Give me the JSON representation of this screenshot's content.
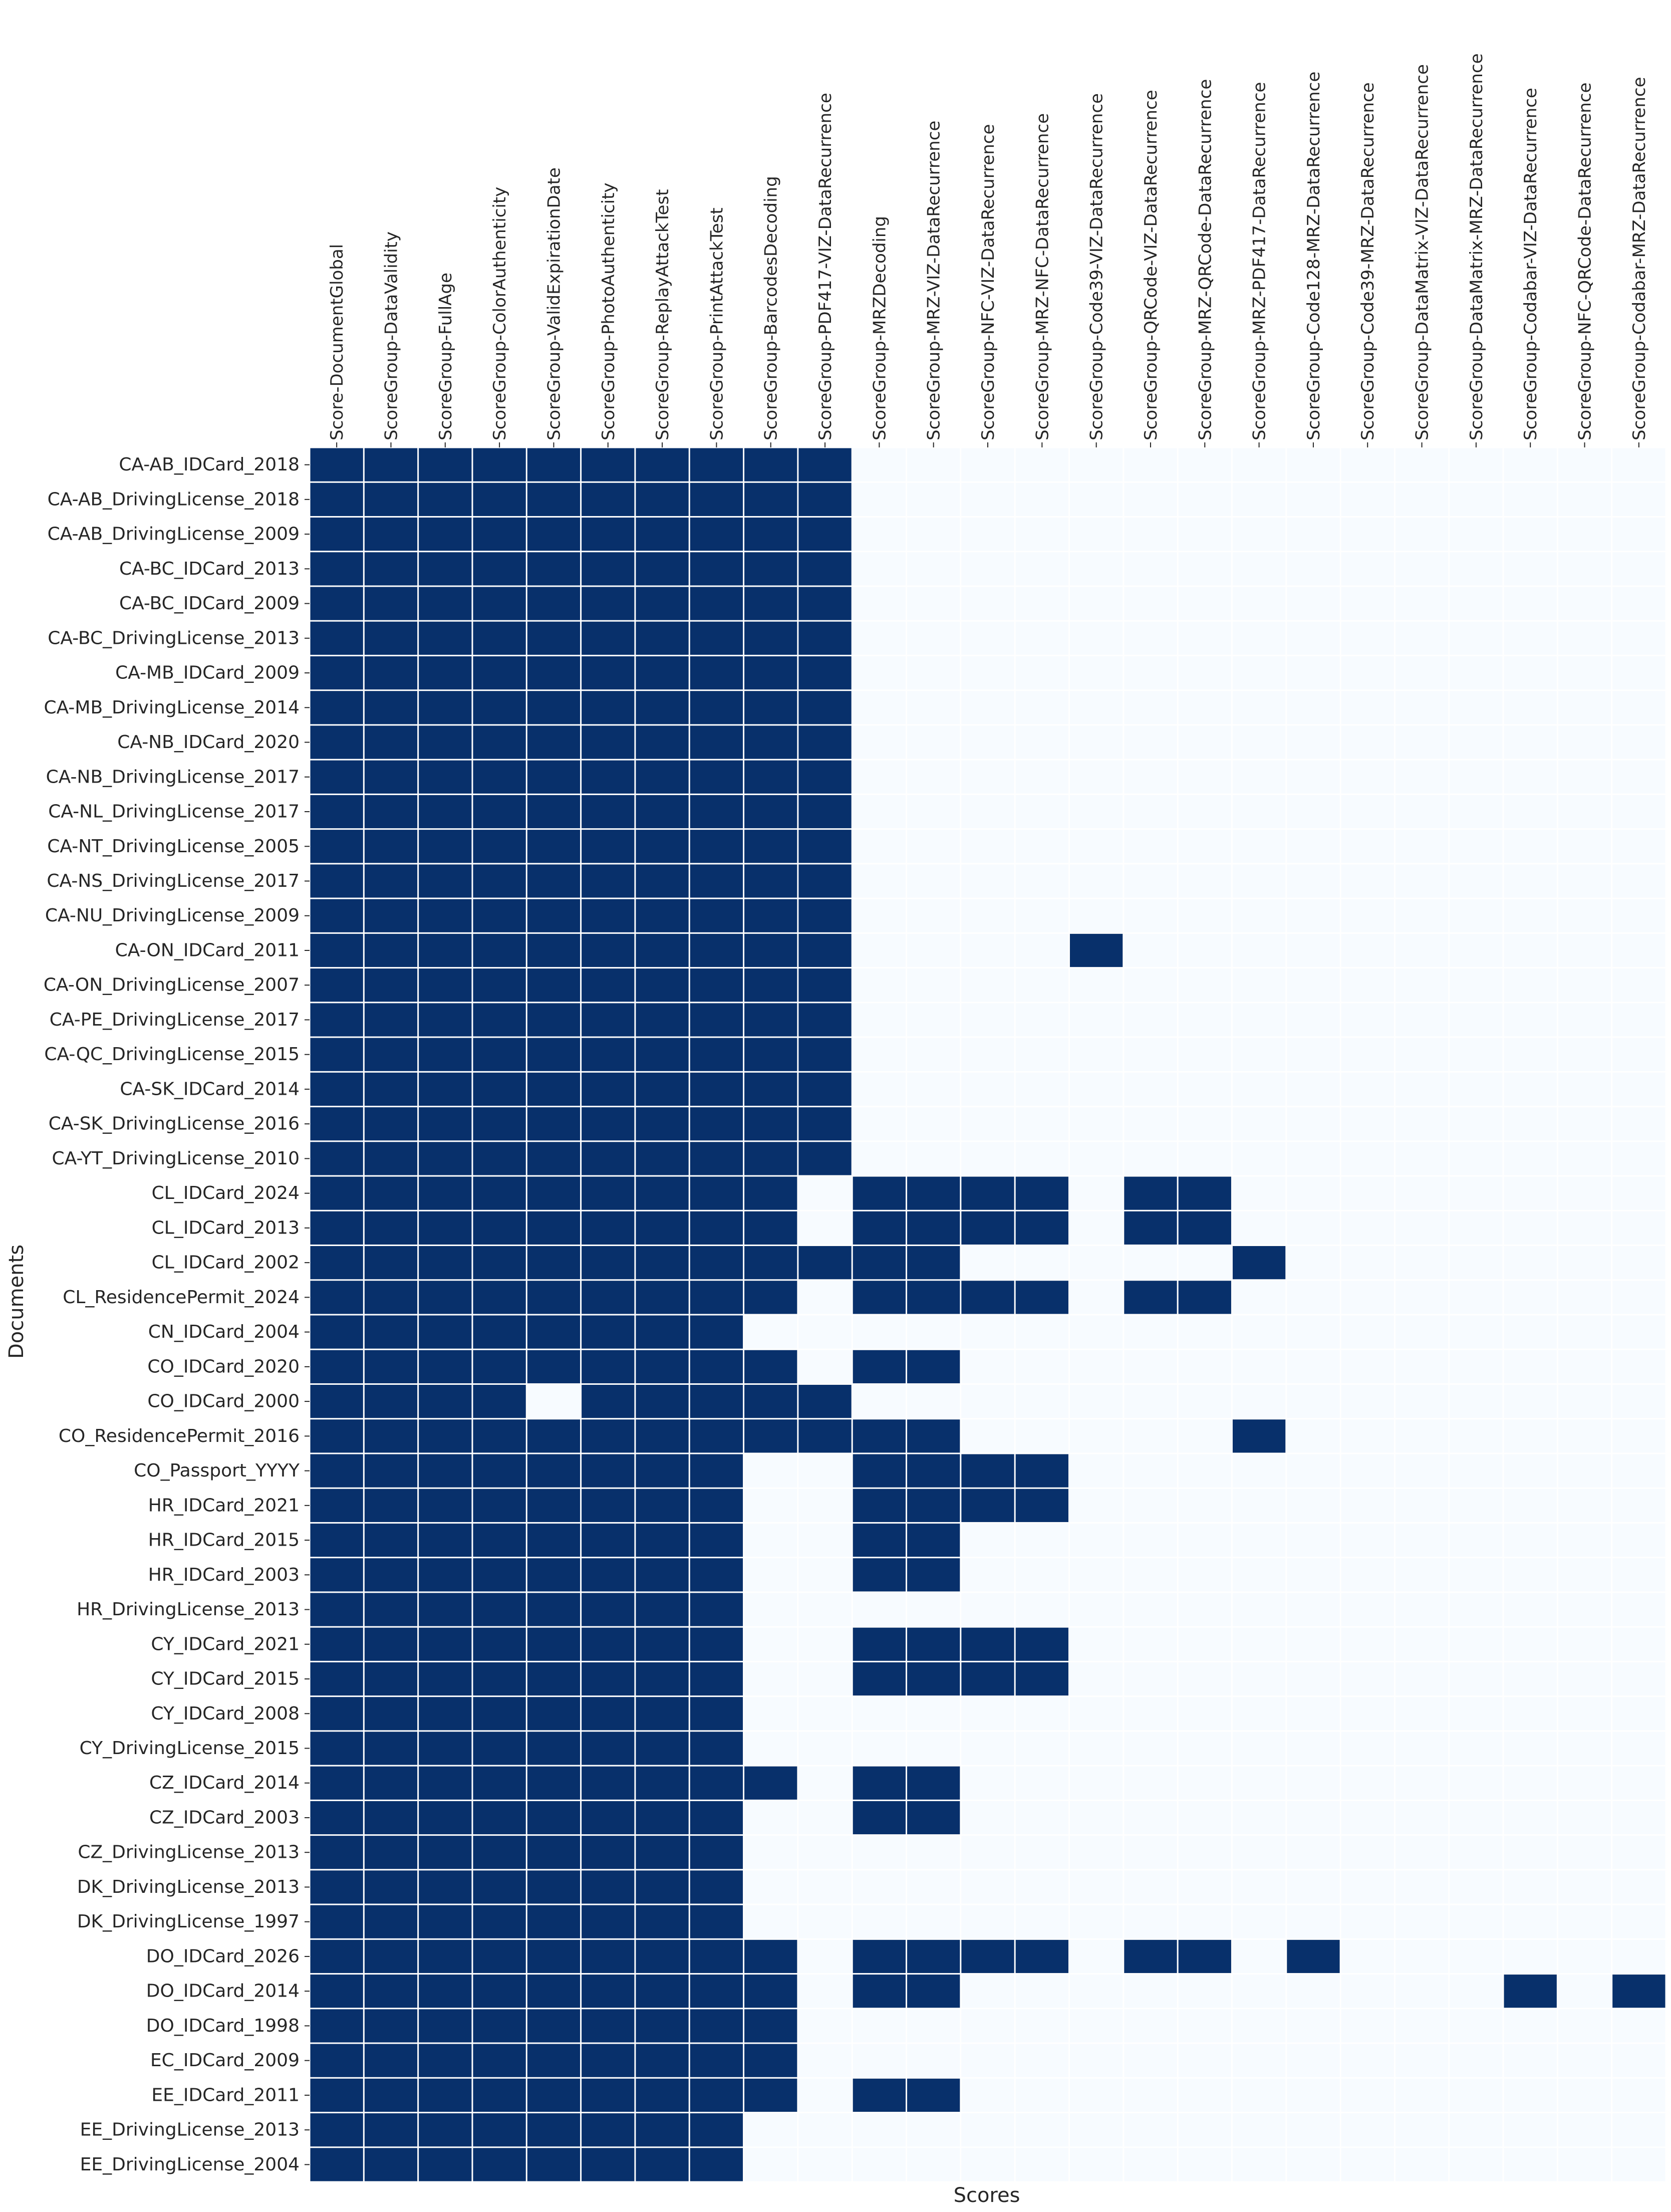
{
  "chart_data": {
    "type": "heatmap",
    "xlabel": "Scores",
    "ylabel": "Documents",
    "colors": {
      "filled": "#08306b",
      "empty": "#f7fbff",
      "gap": "#ffffff",
      "text": "#262626"
    },
    "columns": [
      "Score-DocumentGlobal",
      "ScoreGroup-DataValidity",
      "ScoreGroup-FullAge",
      "ScoreGroup-ColorAuthenticity",
      "ScoreGroup-ValidExpirationDate",
      "ScoreGroup-PhotoAuthenticity",
      "ScoreGroup-ReplayAttackTest",
      "ScoreGroup-PrintAttackTest",
      "ScoreGroup-BarcodesDecoding",
      "ScoreGroup-PDF417-VIZ-DataRecurrence",
      "ScoreGroup-MRZDecoding",
      "ScoreGroup-MRZ-VIZ-DataRecurrence",
      "ScoreGroup-NFC-VIZ-DataRecurrence",
      "ScoreGroup-MRZ-NFC-DataRecurrence",
      "ScoreGroup-Code39-VIZ-DataRecurrence",
      "ScoreGroup-QRCode-VIZ-DataRecurrence",
      "ScoreGroup-MRZ-QRCode-DataRecurrence",
      "ScoreGroup-MRZ-PDF417-DataRecurrence",
      "ScoreGroup-Code128-MRZ-DataRecurrence",
      "ScoreGroup-Code39-MRZ-DataRecurrence",
      "ScoreGroup-DataMatrix-VIZ-DataRecurrence",
      "ScoreGroup-DataMatrix-MRZ-DataRecurrence",
      "ScoreGroup-Codabar-VIZ-DataRecurrence",
      "ScoreGroup-NFC-QRCode-DataRecurrence",
      "ScoreGroup-Codabar-MRZ-DataRecurrence"
    ],
    "rows": [
      "CA-AB_IDCard_2018",
      "CA-AB_DrivingLicense_2018",
      "CA-AB_DrivingLicense_2009",
      "CA-BC_IDCard_2013",
      "CA-BC_IDCard_2009",
      "CA-BC_DrivingLicense_2013",
      "CA-MB_IDCard_2009",
      "CA-MB_DrivingLicense_2014",
      "CA-NB_IDCard_2020",
      "CA-NB_DrivingLicense_2017",
      "CA-NL_DrivingLicense_2017",
      "CA-NT_DrivingLicense_2005",
      "CA-NS_DrivingLicense_2017",
      "CA-NU_DrivingLicense_2009",
      "CA-ON_IDCard_2011",
      "CA-ON_DrivingLicense_2007",
      "CA-PE_DrivingLicense_2017",
      "CA-QC_DrivingLicense_2015",
      "CA-SK_IDCard_2014",
      "CA-SK_DrivingLicense_2016",
      "CA-YT_DrivingLicense_2010",
      "CL_IDCard_2024",
      "CL_IDCard_2013",
      "CL_IDCard_2002",
      "CL_ResidencePermit_2024",
      "CN_IDCard_2004",
      "CO_IDCard_2020",
      "CO_IDCard_2000",
      "CO_ResidencePermit_2016",
      "CO_Passport_YYYY",
      "HR_IDCard_2021",
      "HR_IDCard_2015",
      "HR_IDCard_2003",
      "HR_DrivingLicense_2013",
      "CY_IDCard_2021",
      "CY_IDCard_2015",
      "CY_IDCard_2008",
      "CY_DrivingLicense_2015",
      "CZ_IDCard_2014",
      "CZ_IDCard_2003",
      "CZ_DrivingLicense_2013",
      "DK_DrivingLicense_2013",
      "DK_DrivingLicense_1997",
      "DO_IDCard_2026",
      "DO_IDCard_2014",
      "DO_IDCard_1998",
      "EC_IDCard_2009",
      "EE_IDCard_2011",
      "EE_DrivingLicense_2013",
      "EE_DrivingLicense_2004"
    ],
    "values": [
      [
        1,
        1,
        1,
        1,
        1,
        1,
        1,
        1,
        1,
        1,
        0,
        0,
        0,
        0,
        0,
        0,
        0,
        0,
        0,
        0,
        0,
        0,
        0,
        0,
        0
      ],
      [
        1,
        1,
        1,
        1,
        1,
        1,
        1,
        1,
        1,
        1,
        0,
        0,
        0,
        0,
        0,
        0,
        0,
        0,
        0,
        0,
        0,
        0,
        0,
        0,
        0
      ],
      [
        1,
        1,
        1,
        1,
        1,
        1,
        1,
        1,
        1,
        1,
        0,
        0,
        0,
        0,
        0,
        0,
        0,
        0,
        0,
        0,
        0,
        0,
        0,
        0,
        0
      ],
      [
        1,
        1,
        1,
        1,
        1,
        1,
        1,
        1,
        1,
        1,
        0,
        0,
        0,
        0,
        0,
        0,
        0,
        0,
        0,
        0,
        0,
        0,
        0,
        0,
        0
      ],
      [
        1,
        1,
        1,
        1,
        1,
        1,
        1,
        1,
        1,
        1,
        0,
        0,
        0,
        0,
        0,
        0,
        0,
        0,
        0,
        0,
        0,
        0,
        0,
        0,
        0
      ],
      [
        1,
        1,
        1,
        1,
        1,
        1,
        1,
        1,
        1,
        1,
        0,
        0,
        0,
        0,
        0,
        0,
        0,
        0,
        0,
        0,
        0,
        0,
        0,
        0,
        0
      ],
      [
        1,
        1,
        1,
        1,
        1,
        1,
        1,
        1,
        1,
        1,
        0,
        0,
        0,
        0,
        0,
        0,
        0,
        0,
        0,
        0,
        0,
        0,
        0,
        0,
        0
      ],
      [
        1,
        1,
        1,
        1,
        1,
        1,
        1,
        1,
        1,
        1,
        0,
        0,
        0,
        0,
        0,
        0,
        0,
        0,
        0,
        0,
        0,
        0,
        0,
        0,
        0
      ],
      [
        1,
        1,
        1,
        1,
        1,
        1,
        1,
        1,
        1,
        1,
        0,
        0,
        0,
        0,
        0,
        0,
        0,
        0,
        0,
        0,
        0,
        0,
        0,
        0,
        0
      ],
      [
        1,
        1,
        1,
        1,
        1,
        1,
        1,
        1,
        1,
        1,
        0,
        0,
        0,
        0,
        0,
        0,
        0,
        0,
        0,
        0,
        0,
        0,
        0,
        0,
        0
      ],
      [
        1,
        1,
        1,
        1,
        1,
        1,
        1,
        1,
        1,
        1,
        0,
        0,
        0,
        0,
        0,
        0,
        0,
        0,
        0,
        0,
        0,
        0,
        0,
        0,
        0
      ],
      [
        1,
        1,
        1,
        1,
        1,
        1,
        1,
        1,
        1,
        1,
        0,
        0,
        0,
        0,
        0,
        0,
        0,
        0,
        0,
        0,
        0,
        0,
        0,
        0,
        0
      ],
      [
        1,
        1,
        1,
        1,
        1,
        1,
        1,
        1,
        1,
        1,
        0,
        0,
        0,
        0,
        0,
        0,
        0,
        0,
        0,
        0,
        0,
        0,
        0,
        0,
        0
      ],
      [
        1,
        1,
        1,
        1,
        1,
        1,
        1,
        1,
        1,
        1,
        0,
        0,
        0,
        0,
        0,
        0,
        0,
        0,
        0,
        0,
        0,
        0,
        0,
        0,
        0
      ],
      [
        1,
        1,
        1,
        1,
        1,
        1,
        1,
        1,
        1,
        1,
        0,
        0,
        0,
        0,
        1,
        0,
        0,
        0,
        0,
        0,
        0,
        0,
        0,
        0,
        0
      ],
      [
        1,
        1,
        1,
        1,
        1,
        1,
        1,
        1,
        1,
        1,
        0,
        0,
        0,
        0,
        0,
        0,
        0,
        0,
        0,
        0,
        0,
        0,
        0,
        0,
        0
      ],
      [
        1,
        1,
        1,
        1,
        1,
        1,
        1,
        1,
        1,
        1,
        0,
        0,
        0,
        0,
        0,
        0,
        0,
        0,
        0,
        0,
        0,
        0,
        0,
        0,
        0
      ],
      [
        1,
        1,
        1,
        1,
        1,
        1,
        1,
        1,
        1,
        1,
        0,
        0,
        0,
        0,
        0,
        0,
        0,
        0,
        0,
        0,
        0,
        0,
        0,
        0,
        0
      ],
      [
        1,
        1,
        1,
        1,
        1,
        1,
        1,
        1,
        1,
        1,
        0,
        0,
        0,
        0,
        0,
        0,
        0,
        0,
        0,
        0,
        0,
        0,
        0,
        0,
        0
      ],
      [
        1,
        1,
        1,
        1,
        1,
        1,
        1,
        1,
        1,
        1,
        0,
        0,
        0,
        0,
        0,
        0,
        0,
        0,
        0,
        0,
        0,
        0,
        0,
        0,
        0
      ],
      [
        1,
        1,
        1,
        1,
        1,
        1,
        1,
        1,
        1,
        1,
        0,
        0,
        0,
        0,
        0,
        0,
        0,
        0,
        0,
        0,
        0,
        0,
        0,
        0,
        0
      ],
      [
        1,
        1,
        1,
        1,
        1,
        1,
        1,
        1,
        1,
        0,
        1,
        1,
        1,
        1,
        0,
        1,
        1,
        0,
        0,
        0,
        0,
        0,
        0,
        0,
        0
      ],
      [
        1,
        1,
        1,
        1,
        1,
        1,
        1,
        1,
        1,
        0,
        1,
        1,
        1,
        1,
        0,
        1,
        1,
        0,
        0,
        0,
        0,
        0,
        0,
        0,
        0
      ],
      [
        1,
        1,
        1,
        1,
        1,
        1,
        1,
        1,
        1,
        1,
        1,
        1,
        0,
        0,
        0,
        0,
        0,
        1,
        0,
        0,
        0,
        0,
        0,
        0,
        0
      ],
      [
        1,
        1,
        1,
        1,
        1,
        1,
        1,
        1,
        1,
        0,
        1,
        1,
        1,
        1,
        0,
        1,
        1,
        0,
        0,
        0,
        0,
        0,
        0,
        0,
        0
      ],
      [
        1,
        1,
        1,
        1,
        1,
        1,
        1,
        1,
        0,
        0,
        0,
        0,
        0,
        0,
        0,
        0,
        0,
        0,
        0,
        0,
        0,
        0,
        0,
        0,
        0
      ],
      [
        1,
        1,
        1,
        1,
        1,
        1,
        1,
        1,
        1,
        0,
        1,
        1,
        0,
        0,
        0,
        0,
        0,
        0,
        0,
        0,
        0,
        0,
        0,
        0,
        0
      ],
      [
        1,
        1,
        1,
        1,
        0,
        1,
        1,
        1,
        1,
        1,
        0,
        0,
        0,
        0,
        0,
        0,
        0,
        0,
        0,
        0,
        0,
        0,
        0,
        0,
        0
      ],
      [
        1,
        1,
        1,
        1,
        1,
        1,
        1,
        1,
        1,
        1,
        1,
        1,
        0,
        0,
        0,
        0,
        0,
        1,
        0,
        0,
        0,
        0,
        0,
        0,
        0
      ],
      [
        1,
        1,
        1,
        1,
        1,
        1,
        1,
        1,
        0,
        0,
        1,
        1,
        1,
        1,
        0,
        0,
        0,
        0,
        0,
        0,
        0,
        0,
        0,
        0,
        0
      ],
      [
        1,
        1,
        1,
        1,
        1,
        1,
        1,
        1,
        0,
        0,
        1,
        1,
        1,
        1,
        0,
        0,
        0,
        0,
        0,
        0,
        0,
        0,
        0,
        0,
        0
      ],
      [
        1,
        1,
        1,
        1,
        1,
        1,
        1,
        1,
        0,
        0,
        1,
        1,
        0,
        0,
        0,
        0,
        0,
        0,
        0,
        0,
        0,
        0,
        0,
        0,
        0
      ],
      [
        1,
        1,
        1,
        1,
        1,
        1,
        1,
        1,
        0,
        0,
        1,
        1,
        0,
        0,
        0,
        0,
        0,
        0,
        0,
        0,
        0,
        0,
        0,
        0,
        0
      ],
      [
        1,
        1,
        1,
        1,
        1,
        1,
        1,
        1,
        0,
        0,
        0,
        0,
        0,
        0,
        0,
        0,
        0,
        0,
        0,
        0,
        0,
        0,
        0,
        0,
        0
      ],
      [
        1,
        1,
        1,
        1,
        1,
        1,
        1,
        1,
        0,
        0,
        1,
        1,
        1,
        1,
        0,
        0,
        0,
        0,
        0,
        0,
        0,
        0,
        0,
        0,
        0
      ],
      [
        1,
        1,
        1,
        1,
        1,
        1,
        1,
        1,
        0,
        0,
        1,
        1,
        1,
        1,
        0,
        0,
        0,
        0,
        0,
        0,
        0,
        0,
        0,
        0,
        0
      ],
      [
        1,
        1,
        1,
        1,
        1,
        1,
        1,
        1,
        0,
        0,
        0,
        0,
        0,
        0,
        0,
        0,
        0,
        0,
        0,
        0,
        0,
        0,
        0,
        0,
        0
      ],
      [
        1,
        1,
        1,
        1,
        1,
        1,
        1,
        1,
        0,
        0,
        0,
        0,
        0,
        0,
        0,
        0,
        0,
        0,
        0,
        0,
        0,
        0,
        0,
        0,
        0
      ],
      [
        1,
        1,
        1,
        1,
        1,
        1,
        1,
        1,
        1,
        0,
        1,
        1,
        0,
        0,
        0,
        0,
        0,
        0,
        0,
        0,
        0,
        0,
        0,
        0,
        0
      ],
      [
        1,
        1,
        1,
        1,
        1,
        1,
        1,
        1,
        0,
        0,
        1,
        1,
        0,
        0,
        0,
        0,
        0,
        0,
        0,
        0,
        0,
        0,
        0,
        0,
        0
      ],
      [
        1,
        1,
        1,
        1,
        1,
        1,
        1,
        1,
        0,
        0,
        0,
        0,
        0,
        0,
        0,
        0,
        0,
        0,
        0,
        0,
        0,
        0,
        0,
        0,
        0
      ],
      [
        1,
        1,
        1,
        1,
        1,
        1,
        1,
        1,
        0,
        0,
        0,
        0,
        0,
        0,
        0,
        0,
        0,
        0,
        0,
        0,
        0,
        0,
        0,
        0,
        0
      ],
      [
        1,
        1,
        1,
        1,
        1,
        1,
        1,
        1,
        0,
        0,
        0,
        0,
        0,
        0,
        0,
        0,
        0,
        0,
        0,
        0,
        0,
        0,
        0,
        0,
        0
      ],
      [
        1,
        1,
        1,
        1,
        1,
        1,
        1,
        1,
        1,
        0,
        1,
        1,
        1,
        1,
        0,
        1,
        1,
        0,
        1,
        0,
        0,
        0,
        0,
        0,
        0
      ],
      [
        1,
        1,
        1,
        1,
        1,
        1,
        1,
        1,
        1,
        0,
        1,
        1,
        0,
        0,
        0,
        0,
        0,
        0,
        0,
        0,
        0,
        0,
        1,
        0,
        1
      ],
      [
        1,
        1,
        1,
        1,
        1,
        1,
        1,
        1,
        1,
        0,
        0,
        0,
        0,
        0,
        0,
        0,
        0,
        0,
        0,
        0,
        0,
        0,
        0,
        0,
        0
      ],
      [
        1,
        1,
        1,
        1,
        1,
        1,
        1,
        1,
        1,
        0,
        0,
        0,
        0,
        0,
        0,
        0,
        0,
        0,
        0,
        0,
        0,
        0,
        0,
        0,
        0
      ],
      [
        1,
        1,
        1,
        1,
        1,
        1,
        1,
        1,
        1,
        0,
        1,
        1,
        0,
        0,
        0,
        0,
        0,
        0,
        0,
        0,
        0,
        0,
        0,
        0,
        0
      ],
      [
        1,
        1,
        1,
        1,
        1,
        1,
        1,
        1,
        0,
        0,
        0,
        0,
        0,
        0,
        0,
        0,
        0,
        0,
        0,
        0,
        0,
        0,
        0,
        0,
        0
      ],
      [
        1,
        1,
        1,
        1,
        1,
        1,
        1,
        1,
        0,
        0,
        0,
        0,
        0,
        0,
        0,
        0,
        0,
        0,
        0,
        0,
        0,
        0,
        0,
        0,
        0
      ]
    ]
  }
}
